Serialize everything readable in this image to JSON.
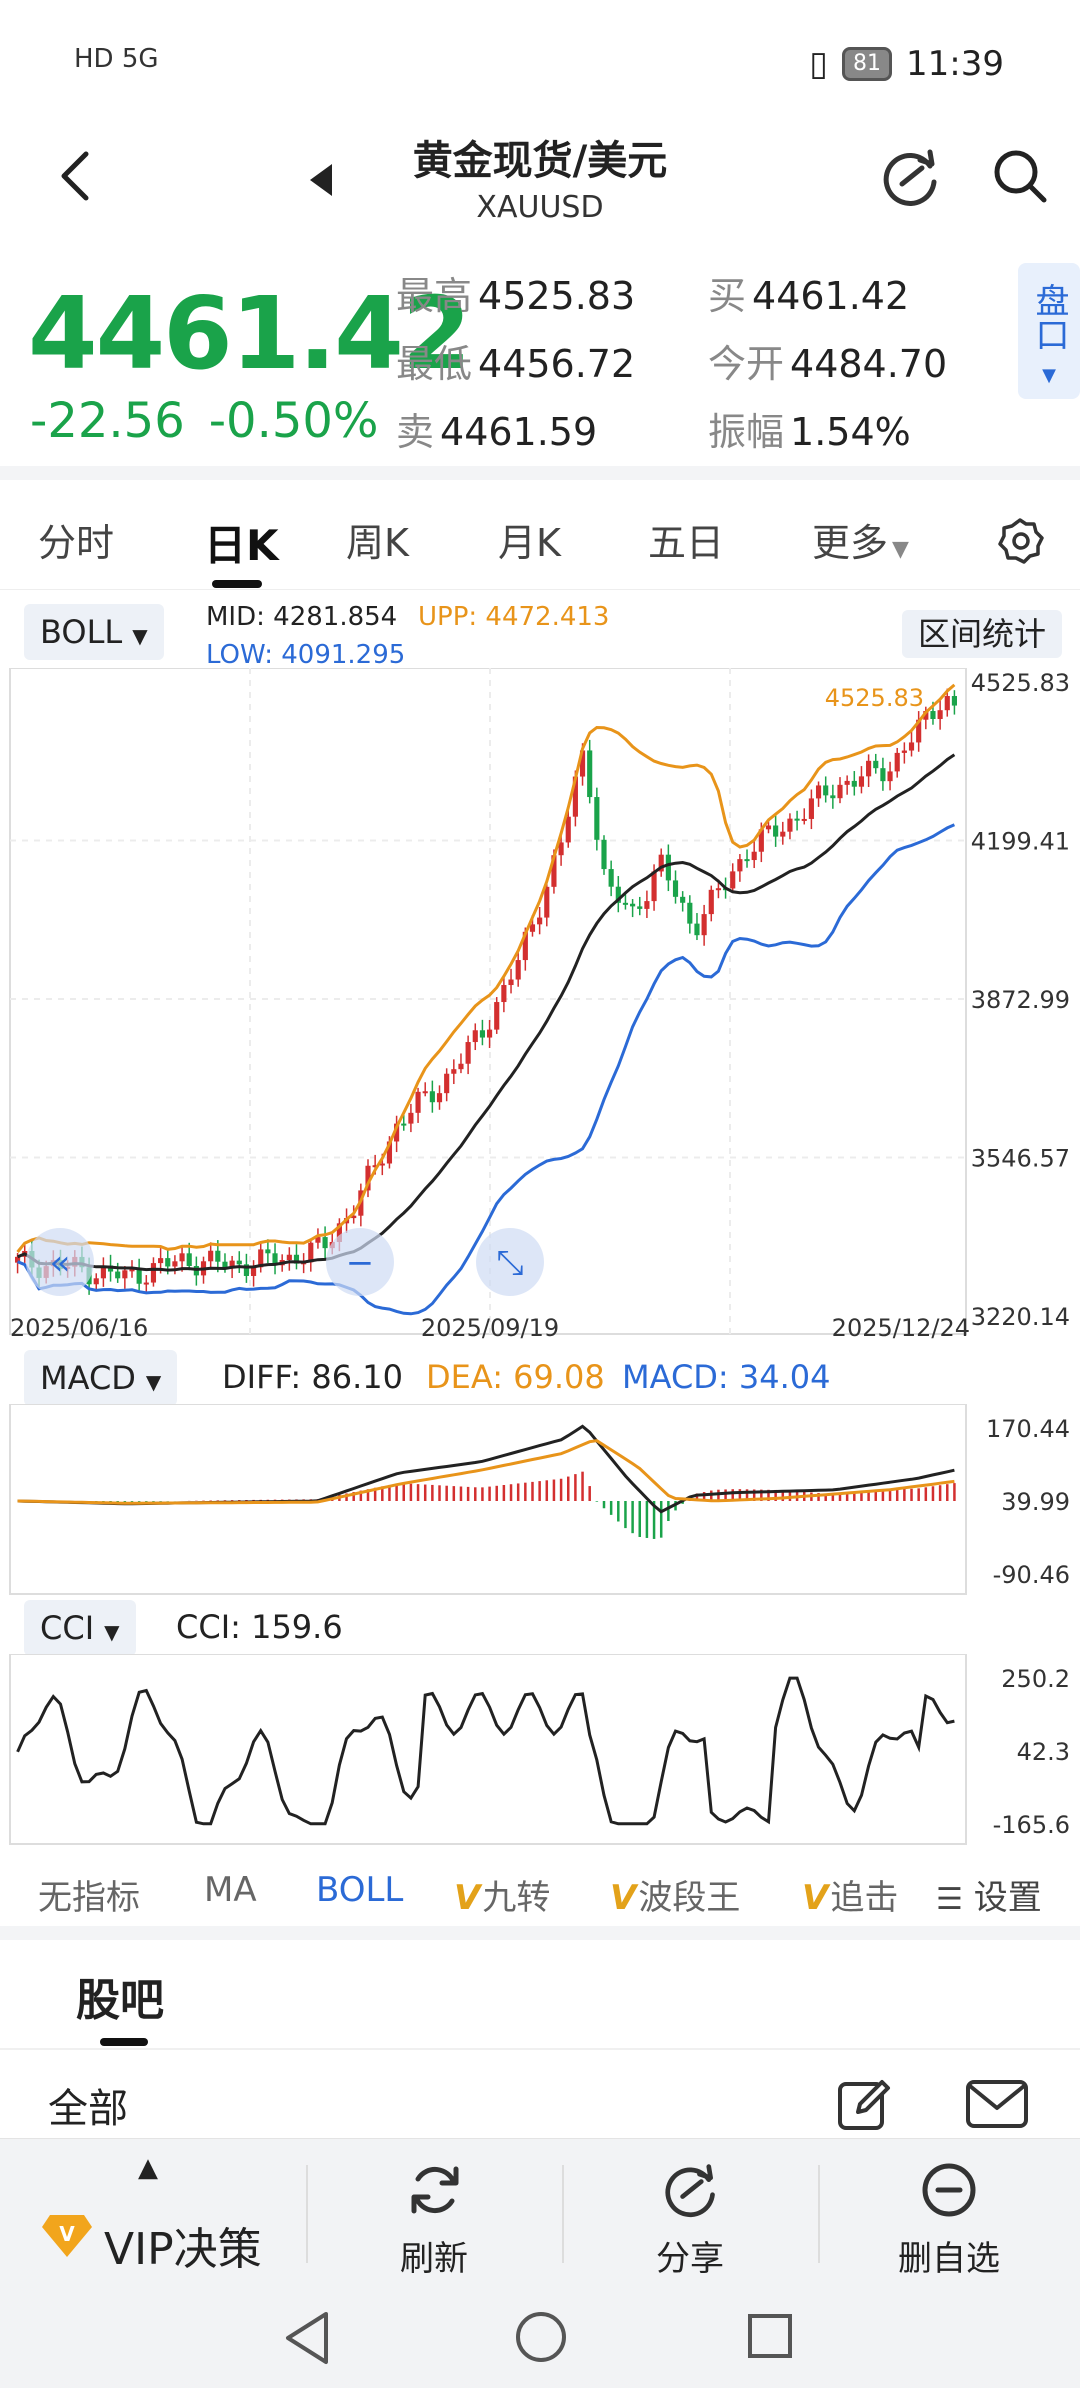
{
  "status_bar": {
    "network": "HD 5G",
    "battery": "81",
    "time": "11:39"
  },
  "header": {
    "title": "黄金现货/美元",
    "symbol": "XAUUSD"
  },
  "quote": {
    "price": "4461.42",
    "change": "-22.56",
    "change_pct": "-0.50%",
    "high_label": "最高",
    "high": "4525.83",
    "low_label": "最低",
    "low": "4456.72",
    "sell_label": "卖",
    "sell": "4461.59",
    "buy_label": "买",
    "buy": "4461.42",
    "open_label": "今开",
    "open": "4484.70",
    "amp_label": "振幅",
    "amp": "1.54%",
    "pankou_label": "盘口"
  },
  "tabs": [
    "分时",
    "日K",
    "周K",
    "月K",
    "五日",
    "更多"
  ],
  "main_chart": {
    "indicator": "BOLL",
    "mid": "MID: 4281.854",
    "upp": "UPP: 4472.413",
    "low": "LOW: 4091.295",
    "range_button": "区间统计",
    "max_marker": "4525.83",
    "y_labels": [
      "4525.83",
      "4199.41",
      "3872.99",
      "3546.57",
      "3220.14"
    ],
    "x_labels": [
      "2025/06/16",
      "2025/09/19",
      "2025/12/24"
    ],
    "colors": {
      "up": "#d32f2f",
      "down": "#1aa34a",
      "mid": "#222222",
      "upp": "#e8941a",
      "low": "#2b6ad6"
    }
  },
  "macd": {
    "indicator": "MACD",
    "diff": "DIFF: 86.10",
    "dea": "DEA: 69.08",
    "macd": "MACD: 34.04",
    "y_labels": [
      "170.44",
      "39.99",
      "-90.46"
    ]
  },
  "cci": {
    "indicator": "CCI",
    "value": "CCI: 159.6",
    "y_labels": [
      "250.2",
      "42.3",
      "-165.6"
    ]
  },
  "indicator_tabs": [
    "无指标",
    "MA",
    "BOLL",
    "九转",
    "波段王",
    "追击",
    "设置"
  ],
  "community": {
    "title": "股吧",
    "filter": "全部"
  },
  "bottom_bar": {
    "vip": "VIP决策",
    "refresh": "刷新",
    "share": "分享",
    "remove": "删自选"
  }
}
